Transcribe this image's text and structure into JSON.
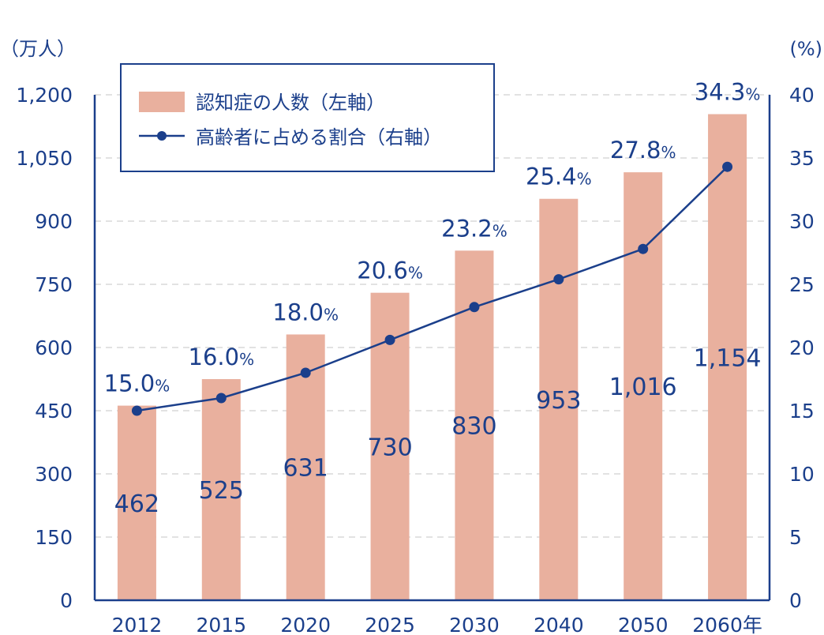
{
  "chart_data": {
    "type": "bar",
    "categories": [
      "2012",
      "2015",
      "2020",
      "2025",
      "2030",
      "2040",
      "2050",
      "2060"
    ],
    "x_unit_suffix": "年",
    "series": [
      {
        "name": "認知症の人数（左軸）",
        "type": "bar",
        "axis": "left",
        "values": [
          462,
          525,
          631,
          730,
          830,
          953,
          1016,
          1154
        ],
        "labels": [
          "462",
          "525",
          "631",
          "730",
          "830",
          "953",
          "1,016",
          "1,154"
        ],
        "color": "#e9b09e"
      },
      {
        "name": "高齢者に占める割合（右軸）",
        "type": "line",
        "axis": "right",
        "values": [
          15.0,
          16.0,
          18.0,
          20.6,
          23.2,
          25.4,
          27.8,
          34.3
        ],
        "labels": [
          "15.0",
          "16.0",
          "18.0",
          "20.6",
          "23.2",
          "25.4",
          "27.8",
          "34.3"
        ],
        "label_suffix": "%",
        "color": "#1b3f8b"
      }
    ],
    "left_axis": {
      "unit": "（万人）",
      "ylim": [
        0,
        1200
      ],
      "ticks": [
        "0",
        "150",
        "300",
        "450",
        "600",
        "750",
        "900",
        "1,050",
        "1,200"
      ]
    },
    "right_axis": {
      "unit": "(%)",
      "ylim": [
        0,
        40
      ],
      "ticks": [
        "0",
        "5",
        "10",
        "15",
        "20",
        "25",
        "30",
        "35",
        "40"
      ]
    },
    "grid": true,
    "grid_style": "dashed",
    "legend_position": "top-left",
    "title": "",
    "xlabel": "",
    "ylabel": ""
  }
}
